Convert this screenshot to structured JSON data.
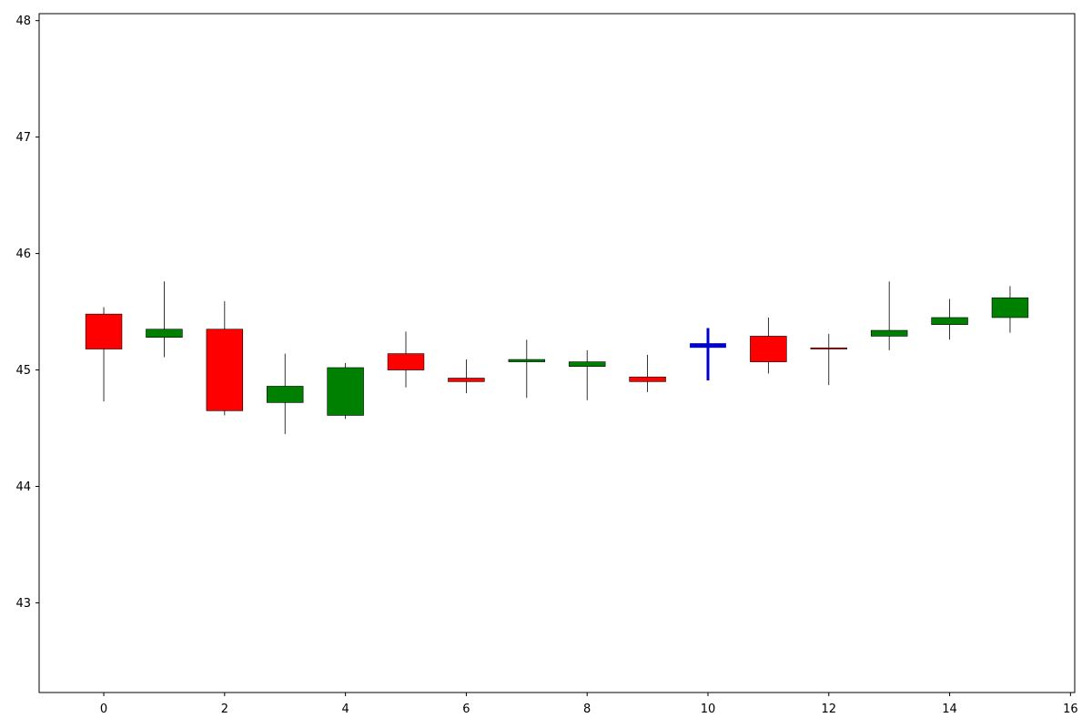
{
  "chart_data": {
    "type": "candlestick",
    "x": [
      0,
      1,
      2,
      3,
      4,
      5,
      6,
      7,
      8,
      9,
      10,
      11,
      12,
      13,
      14,
      15
    ],
    "candles": [
      {
        "x": 0,
        "open": 45.48,
        "high": 45.54,
        "low": 44.73,
        "close": 45.18
      },
      {
        "x": 1,
        "open": 45.28,
        "high": 45.76,
        "low": 45.11,
        "close": 45.35
      },
      {
        "x": 2,
        "open": 45.35,
        "high": 45.59,
        "low": 44.61,
        "close": 44.65
      },
      {
        "x": 3,
        "open": 44.72,
        "high": 45.14,
        "low": 44.45,
        "close": 44.86
      },
      {
        "x": 4,
        "open": 44.61,
        "high": 45.06,
        "low": 44.58,
        "close": 45.02
      },
      {
        "x": 5,
        "open": 45.14,
        "high": 45.33,
        "low": 44.85,
        "close": 45.0
      },
      {
        "x": 6,
        "open": 44.93,
        "high": 45.09,
        "low": 44.8,
        "close": 44.9
      },
      {
        "x": 7,
        "open": 45.07,
        "high": 45.26,
        "low": 44.76,
        "close": 45.09
      },
      {
        "x": 8,
        "open": 45.03,
        "high": 45.17,
        "low": 44.74,
        "close": 45.07
      },
      {
        "x": 9,
        "open": 44.94,
        "high": 45.13,
        "low": 44.81,
        "close": 44.9
      },
      {
        "x": 10,
        "open": 45.21,
        "high": 45.36,
        "low": 44.91,
        "close": 45.21
      },
      {
        "x": 11,
        "open": 45.29,
        "high": 45.45,
        "low": 44.97,
        "close": 45.07
      },
      {
        "x": 12,
        "open": 45.19,
        "high": 45.31,
        "low": 44.87,
        "close": 45.18
      },
      {
        "x": 13,
        "open": 45.29,
        "high": 45.76,
        "low": 45.17,
        "close": 45.34
      },
      {
        "x": 14,
        "open": 45.39,
        "high": 45.61,
        "low": 45.26,
        "close": 45.45
      },
      {
        "x": 15,
        "open": 45.45,
        "high": 45.72,
        "low": 45.32,
        "close": 45.62
      }
    ],
    "title": "",
    "xlabel": "",
    "ylabel": "",
    "xlim": [
      -1.07,
      16.07
    ],
    "ylim": [
      42.23,
      48.06
    ],
    "xticks": [
      0,
      2,
      4,
      6,
      8,
      10,
      12,
      14,
      16
    ],
    "yticks": [
      43,
      44,
      45,
      46,
      47,
      48
    ],
    "grid": false,
    "colors": {
      "up": "#008000",
      "down": "#ff0000",
      "unchanged": "#0000cc",
      "edge": "#000000",
      "wick": "#000000"
    }
  }
}
